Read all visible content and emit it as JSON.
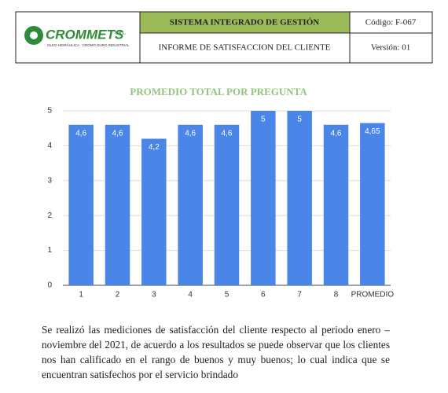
{
  "header": {
    "logo": "CROMMETS",
    "logo_suffix": "S.R.L.",
    "logo_tagline": "OLEO HIDRÁULICA · CROMO DURO INDUSTRIAL",
    "system": "SISTEMA INTEGRADO DE GESTIÓN",
    "code": "Código: F-067",
    "report": "INFORME DE SATISFACCION DEL CLIENTE",
    "version": "Versión: 01"
  },
  "chart_data": {
    "type": "bar",
    "title": "PROMEDIO TOTAL POR PREGUNTA",
    "categories": [
      "1",
      "2",
      "3",
      "4",
      "5",
      "6",
      "7",
      "8",
      "PROMEDIO"
    ],
    "values": [
      4.6,
      4.6,
      4.2,
      4.6,
      4.6,
      5,
      5,
      4.6,
      4.65
    ],
    "value_labels": [
      "4,6",
      "4,6",
      "4,2",
      "4,6",
      "4,6",
      "5",
      "5",
      "4,6",
      "4,65"
    ],
    "color": "#4a86e8",
    "ylim": [
      0,
      5
    ],
    "yticks": [
      0,
      1,
      2,
      3,
      4,
      5
    ],
    "grid": true
  },
  "paragraph": "Se realizó las mediciones de satisfacción del cliente respecto al periodo enero – noviembre del 2021, de acuerdo a los resultados se puede observar que los clientes nos han calificado en el rango de buenos y muy buenos; lo cual indica que se encuentran satisfechos por el servicio brindado"
}
